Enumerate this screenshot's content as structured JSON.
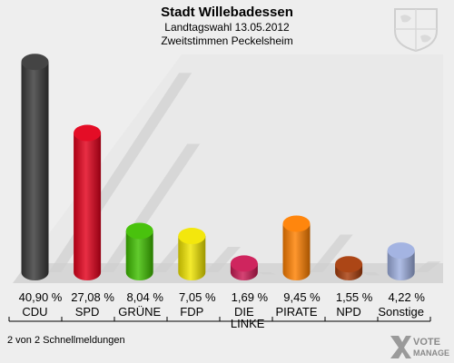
{
  "header": {
    "title": "Stadt Willebadessen",
    "subtitle": "Landtagswahl 13.05.2012",
    "subtitle2": "Zweitstimmen Peckelsheim"
  },
  "footer": {
    "note": "2 von 2 Schnellmeldungen"
  },
  "logo": {
    "line1": "VOTE",
    "line2": "MANAGER"
  },
  "chart_data": {
    "type": "bar",
    "title": "Stadt Willebadessen",
    "subtitle": "Landtagswahl 13.05.2012 · Zweitstimmen Peckelsheim",
    "categories": [
      "CDU",
      "SPD",
      "GRÜNE",
      "FDP",
      "DIE LINKE",
      "PIRATE",
      "NPD",
      "Sonstige"
    ],
    "values": [
      40.9,
      27.08,
      8.04,
      7.05,
      1.69,
      9.45,
      1.55,
      4.22
    ],
    "value_labels": [
      "40,90 %",
      "27,08 %",
      "8,04 %",
      "7,05 %",
      "1,69 %",
      "9,45 %",
      "1,55 %",
      "4,22 %"
    ],
    "colors": [
      "#3a3a3a",
      "#e3001b",
      "#3fbf00",
      "#f2e600",
      "#cc1a55",
      "#ff8000",
      "#a83c0a",
      "#9fb0e0"
    ],
    "ylim": [
      0,
      42
    ],
    "grid": false,
    "legend": "none"
  }
}
